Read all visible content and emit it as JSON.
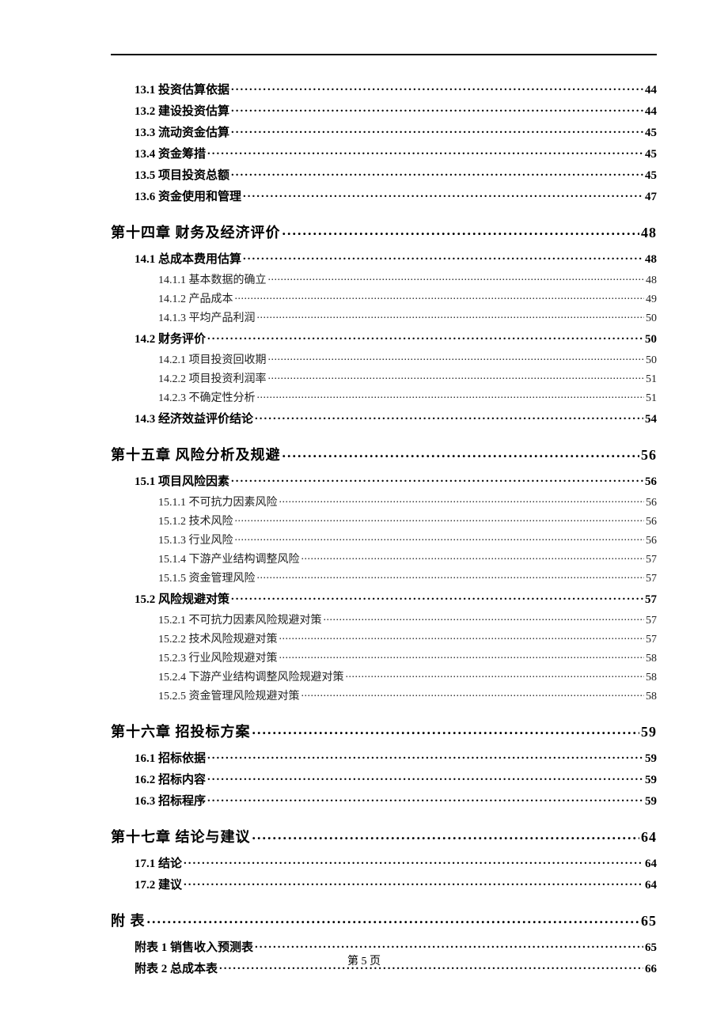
{
  "page_footer": "第 5 页",
  "toc": [
    {
      "level": 2,
      "label": "13.1 投资估算依据",
      "page": "44"
    },
    {
      "level": 2,
      "label": "13.2 建设投资估算",
      "page": "44"
    },
    {
      "level": 2,
      "label": "13.3 流动资金估算",
      "page": "45"
    },
    {
      "level": 2,
      "label": "13.4 资金筹措",
      "page": "45"
    },
    {
      "level": 2,
      "label": "13.5 项目投资总额",
      "page": "45"
    },
    {
      "level": 2,
      "label": "13.6 资金使用和管理",
      "page": "47"
    },
    {
      "level": 1,
      "label": "第十四章  财务及经济评价",
      "page": "48"
    },
    {
      "level": 2,
      "label": "14.1 总成本费用估算",
      "page": "48"
    },
    {
      "level": 3,
      "label": "14.1.1 基本数据的确立",
      "page": "48"
    },
    {
      "level": 3,
      "label": "14.1.2 产品成本",
      "page": "49"
    },
    {
      "level": 3,
      "label": "14.1.3 平均产品利润",
      "page": "50"
    },
    {
      "level": 2,
      "label": "14.2 财务评价",
      "page": "50"
    },
    {
      "level": 3,
      "label": "14.2.1 项目投资回收期",
      "page": "50"
    },
    {
      "level": 3,
      "label": "14.2.2 项目投资利润率",
      "page": "51"
    },
    {
      "level": 3,
      "label": "14.2.3 不确定性分析",
      "page": "51"
    },
    {
      "level": 2,
      "label": "14.3 经济效益评价结论",
      "page": "54"
    },
    {
      "level": 1,
      "label": "第十五章  风险分析及规避",
      "page": "56"
    },
    {
      "level": 2,
      "label": "15.1 项目风险因素",
      "page": "56"
    },
    {
      "level": 3,
      "label": "15.1.1 不可抗力因素风险",
      "page": "56"
    },
    {
      "level": 3,
      "label": "15.1.2 技术风险",
      "page": "56"
    },
    {
      "level": 3,
      "label": "15.1.3 行业风险",
      "page": "56"
    },
    {
      "level": 3,
      "label": "15.1.4 下游产业结构调整风险",
      "page": "57"
    },
    {
      "level": 3,
      "label": "15.1.5 资金管理风险",
      "page": "57"
    },
    {
      "level": 2,
      "label": "15.2 风险规避对策",
      "page": "57"
    },
    {
      "level": 3,
      "label": "15.2.1 不可抗力因素风险规避对策",
      "page": "57"
    },
    {
      "level": 3,
      "label": "15.2.2 技术风险规避对策",
      "page": "57"
    },
    {
      "level": 3,
      "label": "15.2.3 行业风险规避对策",
      "page": "58"
    },
    {
      "level": 3,
      "label": "15.2.4 下游产业结构调整风险规避对策",
      "page": "58"
    },
    {
      "level": 3,
      "label": "15.2.5 资金管理风险规避对策",
      "page": "58"
    },
    {
      "level": 1,
      "label": "第十六章  招投标方案",
      "page": "59"
    },
    {
      "level": 2,
      "label": "16.1 招标依据",
      "page": "59"
    },
    {
      "level": 2,
      "label": "16.2 招标内容",
      "page": "59"
    },
    {
      "level": 2,
      "label": "16.3 招标程序",
      "page": "59"
    },
    {
      "level": 1,
      "label": "第十七章  结论与建议",
      "page": "64"
    },
    {
      "level": 2,
      "label": "17.1 结论",
      "page": "64"
    },
    {
      "level": 2,
      "label": "17.2 建议",
      "page": "64"
    },
    {
      "level": 1,
      "label": "附  表",
      "page": "65"
    },
    {
      "level": 2,
      "label": "附表 1  销售收入预测表",
      "page": "65"
    },
    {
      "level": 2,
      "label": "附表 2  总成本表",
      "page": "66"
    }
  ]
}
